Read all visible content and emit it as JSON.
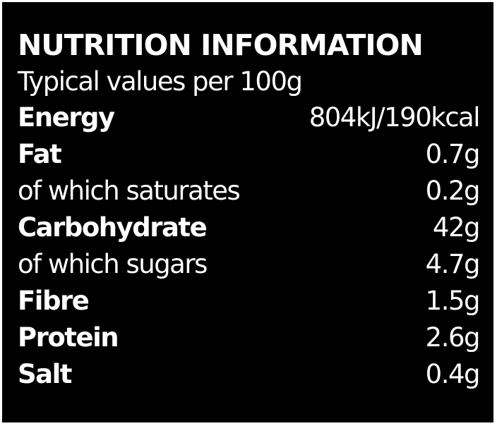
{
  "header": {
    "title": "NUTRITION INFORMATION",
    "subtitle": "Typical values per 100g"
  },
  "table": {
    "rows": [
      [
        "Energy",
        "804kJ/190kcal"
      ],
      [
        "Fat",
        "0.7g"
      ],
      [
        "of which saturates",
        "0.2g"
      ],
      [
        "Carbohydrate",
        "42g"
      ],
      [
        "of which sugars",
        "4.7g"
      ],
      [
        "Fibre",
        "1.5g"
      ],
      [
        "Protein",
        "2.6g"
      ],
      [
        "Salt",
        "0.4g"
      ]
    ],
    "bold": [
      true,
      true,
      false,
      true,
      false,
      true,
      true,
      true
    ]
  }
}
